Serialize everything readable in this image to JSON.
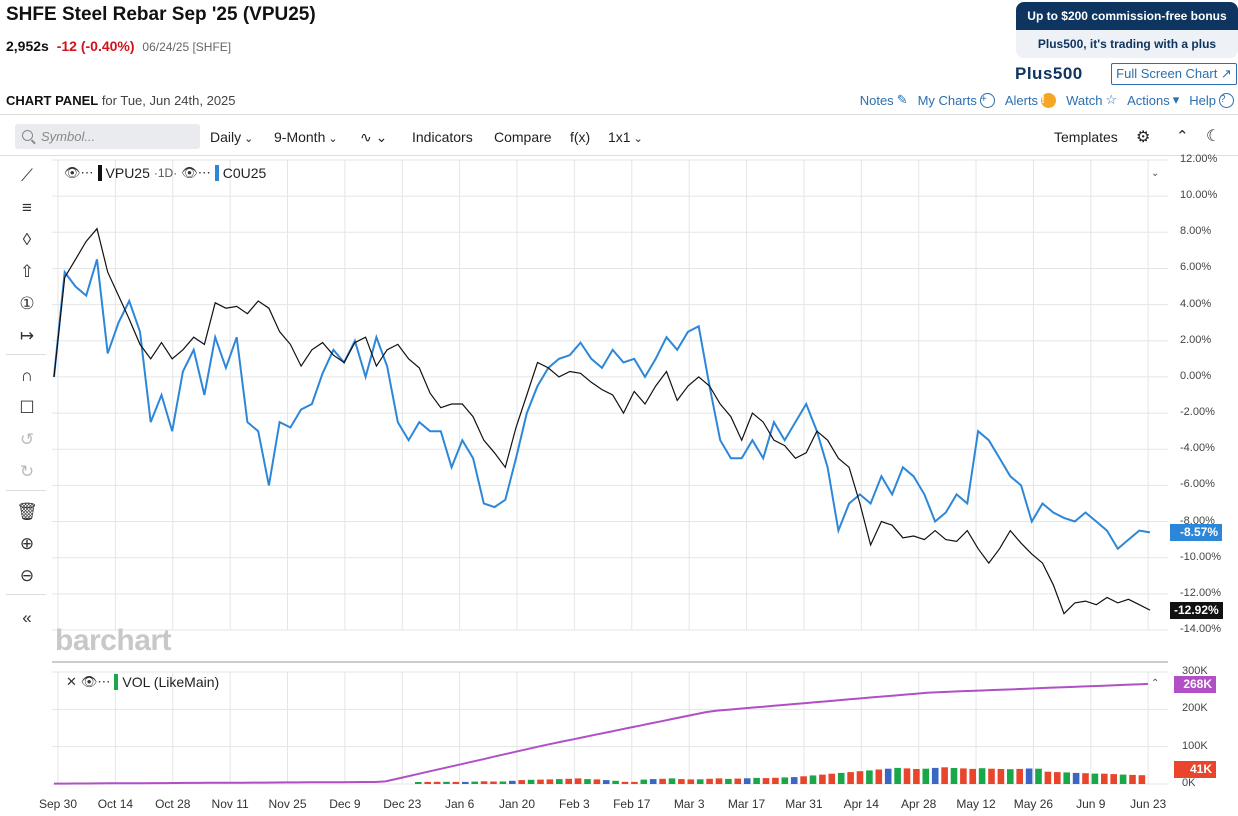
{
  "header": {
    "title": "SHFE Steel Rebar Sep '25 (VPU25)",
    "last": "2,952s",
    "change": "-12 (-0.40%)",
    "date": "06/24/25 [SHFE]"
  },
  "promo": {
    "top": "Up to $200 commission-free bonus",
    "bottom": "Plus500, it's trading with a plus",
    "logo": "Plus500",
    "fullscreen": "Full Screen Chart ↗"
  },
  "panel": {
    "label_bold": "CHART PANEL",
    "label_rest": " for Tue, Jun 24th, 2025",
    "links": [
      "Notes",
      "My Charts",
      "Alerts",
      "Watch",
      "Actions",
      "Help"
    ]
  },
  "toolbar": {
    "search_placeholder": "Symbol...",
    "items": [
      "Daily",
      "9-Month",
      "Indicators",
      "Compare",
      "f(x)",
      "1x1",
      "Templates"
    ]
  },
  "legend": {
    "main_symbol": "VPU25",
    "main_interval": "·1D·",
    "compare_symbol": "C0U25",
    "volume": "VOL (LikeMain)",
    "colors": {
      "main": "#111111",
      "compare": "#2d87d9",
      "volume_line": "#b14fc5",
      "vol_up": "#1aa74a",
      "vol_down": "#e8452c",
      "vol_neutral": "#3a66c4"
    }
  },
  "watermark": "barchart",
  "chart_data": [
    {
      "type": "line",
      "title": "",
      "ylabel": "",
      "ylim": [
        -14,
        12
      ],
      "y_ticks": [
        "12.00%",
        "10.00%",
        "8.00%",
        "6.00%",
        "4.00%",
        "2.00%",
        "0.00%",
        "-2.00%",
        "-4.00%",
        "-6.00%",
        "-8.00%",
        "-10.00%",
        "-12.00%",
        "-14.00%"
      ],
      "x_ticks": [
        "Sep 30",
        "Oct 14",
        "Oct 28",
        "Nov 11",
        "Nov 25",
        "Dec 9",
        "Dec 23",
        "Jan 6",
        "Jan 20",
        "Feb 3",
        "Feb 17",
        "Mar 3",
        "Mar 17",
        "Mar 31",
        "Apr 14",
        "Apr 28",
        "May 12",
        "May 26",
        "Jun 9",
        "Jun 23"
      ],
      "series": [
        {
          "name": "VPU25",
          "last_label": "-12.92%",
          "values": [
            0,
            5.5,
            6.5,
            7.5,
            8.2,
            5.8,
            4.5,
            3.2,
            1.8,
            1.0,
            1.9,
            1.0,
            1.5,
            2.2,
            1.8,
            4.1,
            3.8,
            3.9,
            3.5,
            4.2,
            3.8,
            2.5,
            1.8,
            0.6,
            1.5,
            1.9,
            1.2,
            0.8,
            1.9,
            2.2,
            0.6,
            1.5,
            1.8,
            1.0,
            0.5,
            -0.9,
            -1.7,
            -1.5,
            -1.5,
            -2.2,
            -3.5,
            -4.2,
            -5.0,
            -2.8,
            -1.0,
            0.8,
            0.5,
            0.0,
            0.3,
            0.2,
            -0.3,
            -0.7,
            -1.0,
            -2.0,
            -0.8,
            -1.5,
            -0.5,
            0.3,
            -1.3,
            -0.5,
            0.0,
            -0.5,
            -1.5,
            -2.2,
            -3.5,
            -2.0,
            -2.5,
            -3.5,
            -3.8,
            -4.5,
            -4.2,
            -3.0,
            -3.5,
            -4.5,
            -5.0,
            -7.0,
            -9.3,
            -8.0,
            -8.2,
            -8.9,
            -8.8,
            -9.0,
            -8.5,
            -9.0,
            -9.1,
            -8.5,
            -9.5,
            -10.3,
            -9.5,
            -8.5,
            -9.2,
            -9.8,
            -10.3,
            -11.5,
            -13.1,
            -12.5,
            -12.4,
            -12.6,
            -12.2,
            -12.5,
            -12.3,
            -12.6,
            -12.9
          ]
        },
        {
          "name": "C0U25",
          "last_label": "-8.57%",
          "values": [
            0,
            5.8,
            5.0,
            4.5,
            6.5,
            1.3,
            3.0,
            4.2,
            2.5,
            -2.5,
            -1.0,
            -3.0,
            0.3,
            1.5,
            -1.0,
            2.2,
            0.5,
            2.2,
            -2.5,
            -3.0,
            -6.0,
            -2.5,
            -2.8,
            -1.8,
            -1.5,
            0.2,
            1.5,
            0.8,
            2.0,
            0.0,
            2.2,
            0.6,
            -2.5,
            -3.5,
            -2.5,
            -3.0,
            -3.0,
            -5.0,
            -3.5,
            -4.5,
            -7.0,
            -7.2,
            -6.8,
            -4.5,
            -2.0,
            -0.5,
            0.5,
            1.0,
            1.2,
            1.9,
            1.0,
            0.5,
            1.5,
            0.8,
            1.0,
            0.0,
            1.0,
            2.2,
            1.5,
            2.5,
            2.8,
            -0.5,
            -3.5,
            -4.5,
            -4.5,
            -3.5,
            -4.5,
            -2.5,
            -3.5,
            -2.5,
            -1.5,
            -3.0,
            -5.0,
            -8.5,
            -7.0,
            -6.5,
            -7.0,
            -5.5,
            -6.5,
            -5.0,
            -5.5,
            -6.5,
            -8.0,
            -7.5,
            -6.5,
            -7.0,
            -3.0,
            -3.5,
            -4.5,
            -5.5,
            -6.0,
            -8.0,
            -7.0,
            -7.5,
            -7.8,
            -8.0,
            -7.5,
            -8.0,
            -8.5,
            -9.5,
            -9.0,
            -8.5,
            -8.6
          ]
        }
      ]
    },
    {
      "type": "bar",
      "title": "",
      "ylabel": "",
      "ylim": [
        0,
        300000
      ],
      "y_ticks": [
        "300K",
        "200K",
        "100K",
        "0K"
      ],
      "series": [
        {
          "name": "VOL (LikeMain)",
          "last_label": "41K",
          "values": [
            1000,
            1500,
            2000,
            2000,
            1500,
            1500,
            3000,
            5000,
            4000,
            3500,
            8000,
            12000,
            14000,
            15000,
            16000,
            18000,
            20000,
            22000,
            18000,
            16000,
            12000,
            8000,
            2000,
            1500,
            15000,
            18000,
            20000,
            22000,
            18000,
            16000,
            17000,
            20000,
            22000,
            19000,
            21000,
            23000,
            25000,
            24000,
            26000,
            28000,
            30000,
            35000,
            40000,
            45000,
            50000,
            55000,
            60000,
            65000,
            70000,
            75000,
            80000,
            85000,
            82000,
            78000,
            80000,
            85000,
            88000,
            84000,
            82000,
            79000,
            83000,
            80000,
            78000,
            77000,
            79000,
            81000,
            80000,
            62000,
            60000,
            58000,
            55000,
            53000,
            51000,
            50000,
            48000,
            45000,
            43000,
            41000
          ],
          "last_value_label": "268K"
        }
      ]
    }
  ]
}
